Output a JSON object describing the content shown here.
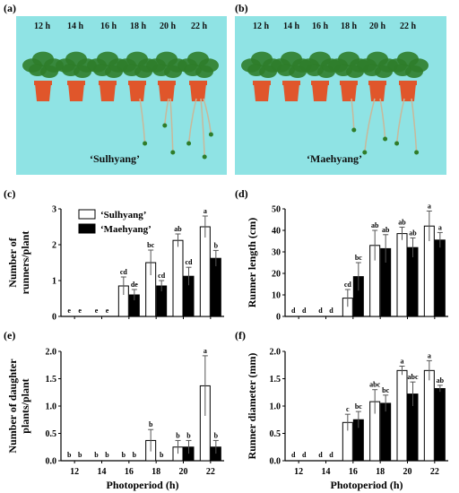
{
  "photos": [
    {
      "letter": "(a)",
      "labels": [
        "12 h",
        "14 h",
        "16 h",
        "18 h",
        "20 h",
        "22 h"
      ],
      "cultivar": "‘Sulhyang’"
    },
    {
      "letter": "(b)",
      "labels": [
        "12 h",
        "14 h",
        "16 h",
        "18 h",
        "20 h",
        "22 h"
      ],
      "cultivar": "‘Maehyang’"
    }
  ],
  "colors": {
    "sulhyang": "#ffffff",
    "maehyang": "#000000",
    "photo_bg": "#8fe3e4",
    "pot": "#e0562b",
    "leaf": "#2f7d2a"
  },
  "legend": [
    "‘Sulhyang’",
    "‘Maehyang’"
  ],
  "chart_data": [
    {
      "panel": "(c)",
      "type": "bar",
      "categories": [
        "12",
        "14",
        "16",
        "18",
        "20",
        "22"
      ],
      "series": [
        {
          "name": "‘Sulhyang’",
          "values": [
            0,
            0,
            0.85,
            1.5,
            2.12,
            2.5
          ],
          "err": [
            0,
            0,
            0.25,
            0.35,
            0.18,
            0.3
          ],
          "letters": [
            "e",
            "e",
            "cd",
            "bc",
            "ab",
            "a"
          ]
        },
        {
          "name": "‘Maehyang’",
          "values": [
            0,
            0,
            0.6,
            0.85,
            1.12,
            1.62
          ],
          "err": [
            0,
            0,
            0.15,
            0.15,
            0.25,
            0.22
          ],
          "letters": [
            "e",
            "e",
            "de",
            "cd",
            "cd",
            "b"
          ]
        }
      ],
      "ylabel": [
        "Number of",
        "runners/plant"
      ],
      "xlabel": "",
      "ylim": [
        0,
        3
      ],
      "yticks": [
        "0",
        "1",
        "2",
        "3"
      ],
      "xticks": []
    },
    {
      "panel": "(d)",
      "type": "bar",
      "categories": [
        "12",
        "14",
        "16",
        "18",
        "20",
        "22"
      ],
      "series": [
        {
          "name": "‘Sulhyang’",
          "values": [
            0,
            0,
            8.5,
            33,
            38.5,
            42
          ],
          "err": [
            0,
            0,
            4,
            7,
            3,
            7
          ],
          "letters": [
            "d",
            "d",
            "cd",
            "ab",
            "ab",
            "a"
          ]
        },
        {
          "name": "‘Maehyang’",
          "values": [
            0,
            0,
            18.5,
            31.5,
            32,
            35.5
          ],
          "err": [
            0,
            0,
            6.5,
            6.5,
            4.5,
            3.5
          ],
          "letters": [
            "d",
            "d",
            "bc",
            "ab",
            "ab",
            "a"
          ]
        }
      ],
      "ylabel": [
        "Runner length (cm)"
      ],
      "xlabel": "",
      "ylim": [
        0,
        50
      ],
      "yticks": [
        "0",
        "10",
        "20",
        "30",
        "40",
        "50"
      ],
      "xticks": []
    },
    {
      "panel": "(e)",
      "type": "bar",
      "categories": [
        "12",
        "14",
        "16",
        "18",
        "20",
        "22"
      ],
      "series": [
        {
          "name": "‘Sulhyang’",
          "values": [
            0,
            0,
            0,
            0.37,
            0.25,
            1.37
          ],
          "err": [
            0,
            0,
            0,
            0.2,
            0.12,
            0.55
          ],
          "letters": [
            "b",
            "b",
            "b",
            "b",
            "b",
            "a"
          ]
        },
        {
          "name": "‘Maehyang’",
          "values": [
            0,
            0,
            0,
            0,
            0.25,
            0.25
          ],
          "err": [
            0,
            0,
            0,
            0,
            0.12,
            0.12
          ],
          "letters": [
            "b",
            "b",
            "b",
            "b",
            "b",
            "b"
          ]
        }
      ],
      "ylabel": [
        "Number of daughter",
        "plants/plant"
      ],
      "xlabel": "Photoperiod (h)",
      "ylim": [
        0,
        2
      ],
      "yticks": [
        "0.0",
        "0.5",
        "1.0",
        "1.5",
        "2.0"
      ],
      "xticks": [
        "12",
        "14",
        "16",
        "18",
        "20",
        "22"
      ]
    },
    {
      "panel": "(f)",
      "type": "bar",
      "categories": [
        "12",
        "14",
        "16",
        "18",
        "20",
        "22"
      ],
      "series": [
        {
          "name": "‘Sulhyang’",
          "values": [
            0,
            0,
            0.7,
            1.08,
            1.65,
            1.65
          ],
          "err": [
            0,
            0,
            0.15,
            0.22,
            0.08,
            0.18
          ],
          "letters": [
            "d",
            "d",
            "c",
            "abc",
            "a",
            "a"
          ]
        },
        {
          "name": "‘Maehyang’",
          "values": [
            0,
            0,
            0.75,
            1.05,
            1.22,
            1.32
          ],
          "err": [
            0,
            0,
            0.15,
            0.15,
            0.22,
            0.06
          ],
          "letters": [
            "d",
            "d",
            "bc",
            "bc",
            "abc",
            "ab"
          ]
        }
      ],
      "ylabel": [
        "Runner diameter (mm)"
      ],
      "xlabel": "Photoperiod (h)",
      "ylim": [
        0,
        2
      ],
      "yticks": [
        "0.0",
        "0.5",
        "1.0",
        "1.5",
        "2.0"
      ],
      "xticks": [
        "12",
        "14",
        "16",
        "18",
        "20",
        "22"
      ]
    }
  ]
}
